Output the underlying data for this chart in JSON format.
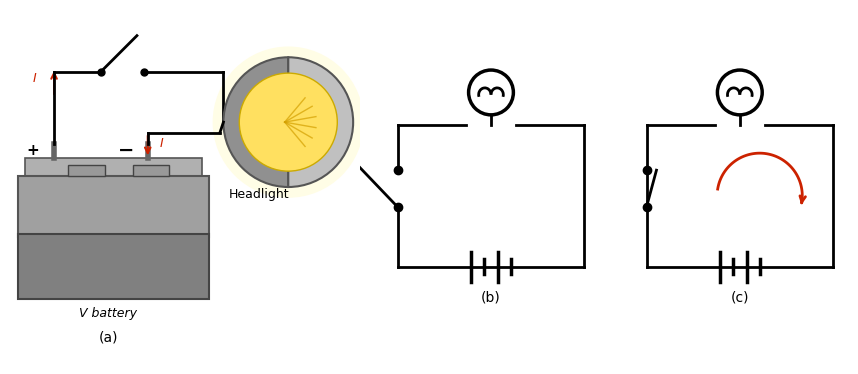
{
  "bg_color": "#ffffff",
  "fig_label_a": "(a)",
  "fig_label_b": "(b)",
  "fig_label_c": "(c)",
  "label_vbattery": "V battery",
  "label_headlight": "Headlight",
  "line_color": "#000000",
  "red_color": "#cc2200",
  "lw": 2.0
}
